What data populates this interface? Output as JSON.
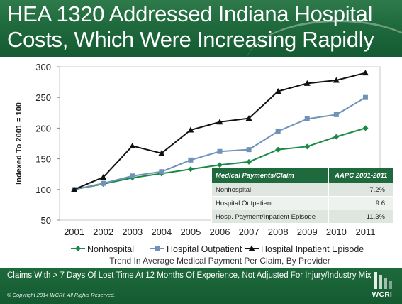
{
  "title": {
    "line1": "HEA 1320 Addressed Indiana Hospital",
    "line2": "Costs, Which Were Increasing Rapidly"
  },
  "chart_data": {
    "type": "line",
    "title": "",
    "ylabel": "Indexed To 2001 = 100",
    "xlabel": "Trend In Average Medical Payment Per Claim, By Provider",
    "ylim": [
      50,
      300
    ],
    "yticks": [
      50,
      100,
      150,
      200,
      250,
      300
    ],
    "grid": "none",
    "legend_position": "bottom",
    "x": [
      "2001",
      "2002",
      "2003",
      "2004",
      "2005",
      "2006",
      "2007",
      "2008",
      "2009",
      "2010",
      "2011"
    ],
    "series": [
      {
        "name": "Nonhospital",
        "marker": "diamond",
        "color": "#1a8a45",
        "values": [
          100,
          109,
          119,
          126,
          133,
          140,
          145,
          165,
          170,
          186,
          200
        ]
      },
      {
        "name": "Hospital Outpatient",
        "marker": "square",
        "color": "#6f93b8",
        "values": [
          100,
          110,
          122,
          129,
          148,
          162,
          165,
          195,
          215,
          222,
          250
        ]
      },
      {
        "name": "Hospital Inpatient Episode",
        "marker": "triangle",
        "color": "#111111",
        "values": [
          100,
          120,
          171,
          159,
          197,
          210,
          216,
          260,
          273,
          278,
          290
        ]
      }
    ]
  },
  "table": {
    "headers": [
      "Medical Payments/Claim",
      "AAPC 2001-2011"
    ],
    "rows": [
      [
        "Nonhospital",
        "7.2%"
      ],
      [
        "Hospital Outpatient",
        "9.6"
      ],
      [
        "Hosp. Payment/Inpatient Episode",
        "11.3%"
      ]
    ]
  },
  "footer": {
    "note": "Claims With > 7 Days Of Lost Time At 12 Months Of Experience, Not Adjusted For Injury/Industry Mix",
    "copyright": "© Copyright 2014 WCRI. All Rights Reserved.",
    "logo_text": "WCRI"
  },
  "colors": {
    "header_green": "#1f6a3d",
    "nonhospital": "#1a8a45",
    "outpatient": "#6f93b8",
    "inpatient": "#111111"
  }
}
